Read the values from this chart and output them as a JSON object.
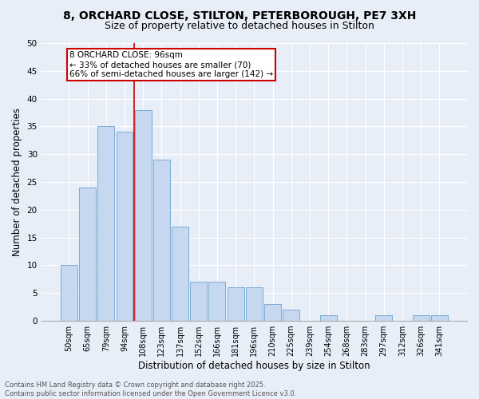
{
  "title_line1": "8, ORCHARD CLOSE, STILTON, PETERBOROUGH, PE7 3XH",
  "title_line2": "Size of property relative to detached houses in Stilton",
  "xlabel": "Distribution of detached houses by size in Stilton",
  "ylabel": "Number of detached properties",
  "categories": [
    "50sqm",
    "65sqm",
    "79sqm",
    "94sqm",
    "108sqm",
    "123sqm",
    "137sqm",
    "152sqm",
    "166sqm",
    "181sqm",
    "196sqm",
    "210sqm",
    "225sqm",
    "239sqm",
    "254sqm",
    "268sqm",
    "283sqm",
    "297sqm",
    "312sqm",
    "326sqm",
    "341sqm"
  ],
  "values": [
    10,
    24,
    35,
    34,
    38,
    29,
    17,
    7,
    7,
    6,
    6,
    3,
    2,
    0,
    1,
    0,
    0,
    1,
    0,
    1,
    1
  ],
  "bar_color": "#c5d8f0",
  "bar_edge_color": "#7bacd4",
  "vline_x": 3.5,
  "vline_color": "#cc0000",
  "annotation_text": "8 ORCHARD CLOSE: 96sqm\n← 33% of detached houses are smaller (70)\n66% of semi-detached houses are larger (142) →",
  "annotation_box_color": "#ffffff",
  "annotation_edge_color": "#cc0000",
  "ylim": [
    0,
    50
  ],
  "yticks": [
    0,
    5,
    10,
    15,
    20,
    25,
    30,
    35,
    40,
    45,
    50
  ],
  "background_color": "#e8eef8",
  "footer_text": "Contains HM Land Registry data © Crown copyright and database right 2025.\nContains public sector information licensed under the Open Government Licence v3.0.",
  "grid_color": "#ffffff",
  "title_fontsize": 10,
  "subtitle_fontsize": 9,
  "tick_fontsize": 7,
  "ylabel_fontsize": 8.5,
  "xlabel_fontsize": 8.5,
  "footer_fontsize": 6,
  "annotation_fontsize": 7.5
}
